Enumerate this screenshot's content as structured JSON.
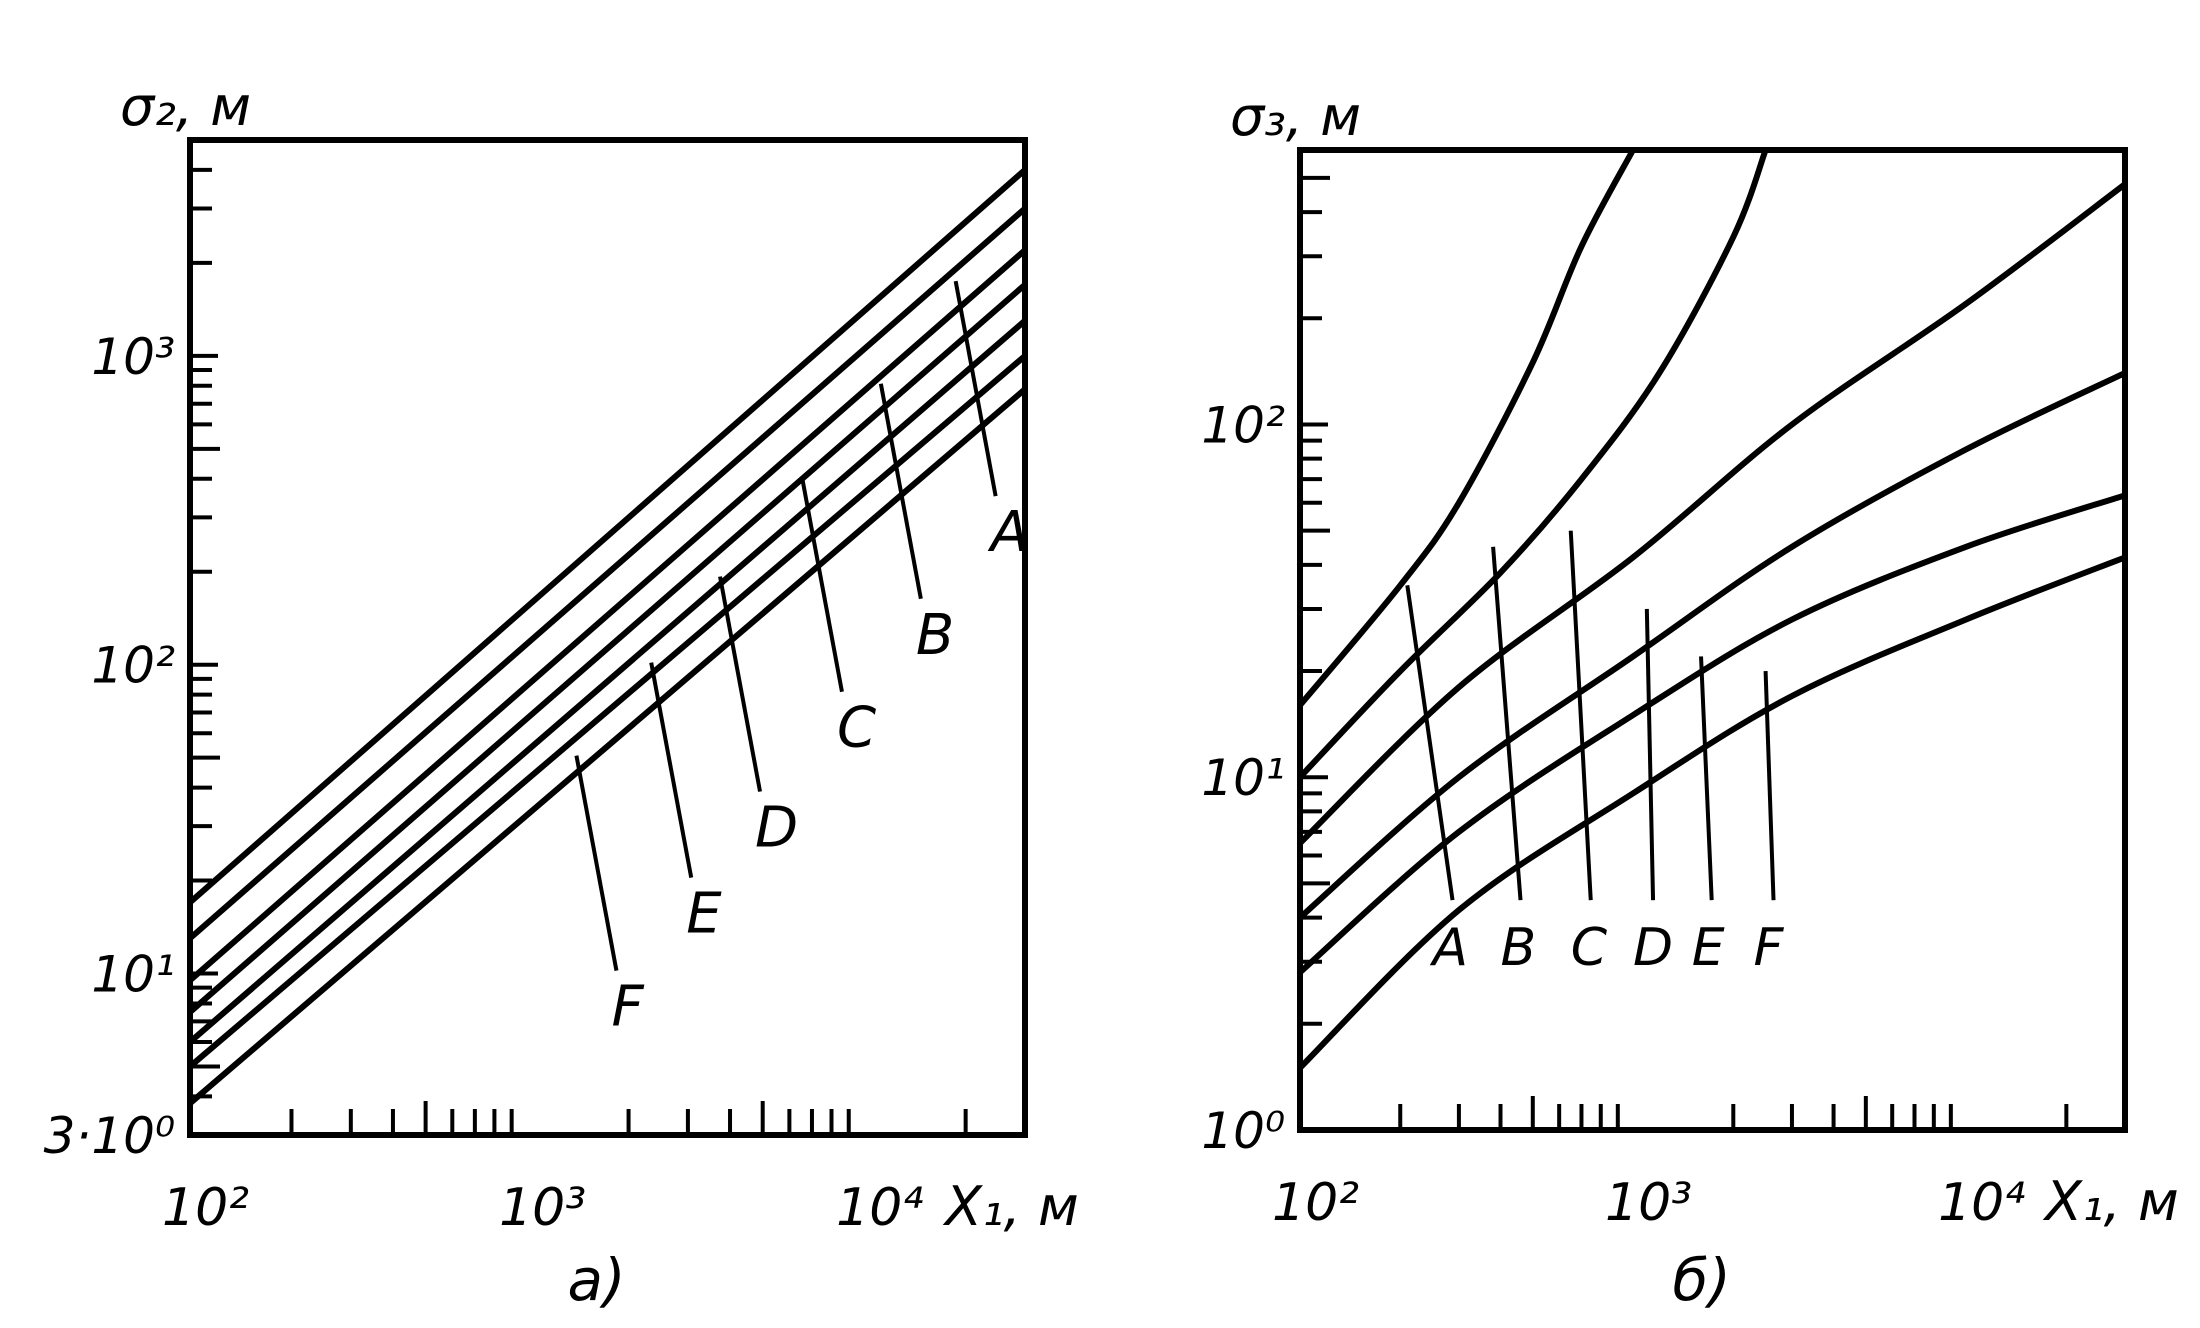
{
  "chart_data": [
    {
      "type": "line",
      "panel_label": "a)",
      "xlabel": "X₁, м",
      "ylabel": "σ₂, м",
      "x_scale": "log",
      "y_scale": "log",
      "xlim": [
        100,
        30000
      ],
      "ylim": [
        3,
        5000
      ],
      "x_tick_labels": [
        {
          "value": 100,
          "text": "10²"
        },
        {
          "value": 1000,
          "text": "10³"
        },
        {
          "value": 10000,
          "text": "10⁴"
        }
      ],
      "y_tick_labels": [
        {
          "value": 3,
          "text": "3·10⁰"
        },
        {
          "value": 10,
          "text": "10¹"
        },
        {
          "value": 100,
          "text": "10²"
        },
        {
          "value": 1000,
          "text": "10³"
        }
      ],
      "series": [
        {
          "name": "A",
          "x": [
            100,
            30000
          ],
          "y": [
            13,
            3000
          ],
          "label_anchor": {
            "x": 20000,
            "y": 860
          }
        },
        {
          "name": "B",
          "x": [
            100,
            30000
          ],
          "y": [
            9.5,
            2200
          ],
          "label_anchor": {
            "x": 12000,
            "y": 400
          }
        },
        {
          "name": "C",
          "x": [
            100,
            30000
          ],
          "y": [
            7.5,
            1700
          ],
          "label_anchor": {
            "x": 7000,
            "y": 200
          }
        },
        {
          "name": "D",
          "x": [
            100,
            30000
          ],
          "y": [
            6,
            1300
          ],
          "label_anchor": {
            "x": 4000,
            "y": 95
          }
        },
        {
          "name": "E",
          "x": [
            100,
            30000
          ],
          "y": [
            5,
            1000
          ],
          "label_anchor": {
            "x": 2500,
            "y": 50
          }
        },
        {
          "name": "F",
          "x": [
            100,
            30000
          ],
          "y": [
            3.8,
            780
          ],
          "label_anchor": {
            "x": 1500,
            "y": 25
          }
        },
        {
          "name": "",
          "x": [
            100,
            30000
          ],
          "y": [
            17,
            4000
          ]
        }
      ]
    },
    {
      "type": "line",
      "panel_label": "б)",
      "xlabel": "X₁, м",
      "ylabel": "σ₃, м",
      "x_scale": "log",
      "y_scale": "log",
      "xlim": [
        100,
        30000
      ],
      "ylim": [
        1,
        600
      ],
      "x_tick_labels": [
        {
          "value": 100,
          "text": "10²"
        },
        {
          "value": 1000,
          "text": "10³"
        },
        {
          "value": 10000,
          "text": "10⁴"
        }
      ],
      "y_tick_labels": [
        {
          "value": 1,
          "text": "10⁰"
        },
        {
          "value": 10,
          "text": "10¹"
        },
        {
          "value": 100,
          "text": "10²"
        }
      ],
      "series": [
        {
          "name": "A",
          "x": [
            100,
            200,
            300,
            500,
            700,
            1000
          ],
          "y": [
            16,
            35,
            60,
            150,
            320,
            600
          ],
          "label_anchor": {
            "x": 250,
            "y": 4.2
          }
        },
        {
          "name": "B",
          "x": [
            100,
            200,
            400,
            700,
            1200,
            2000,
            2500
          ],
          "y": [
            10,
            20,
            38,
            70,
            140,
            340,
            600
          ],
          "label_anchor": {
            "x": 400,
            "y": 4.2
          }
        },
        {
          "name": "C",
          "x": [
            100,
            300,
            1000,
            3000,
            10000,
            30000
          ],
          "y": [
            6.5,
            18,
            42,
            100,
            220,
            480
          ],
          "label_anchor": {
            "x": 650,
            "y": 4.2
          }
        },
        {
          "name": "D",
          "x": [
            100,
            300,
            1000,
            3000,
            10000,
            30000
          ],
          "y": [
            4,
            10,
            22,
            45,
            85,
            140
          ],
          "label_anchor": {
            "x": 1000,
            "y": 4.2
          }
        },
        {
          "name": "E",
          "x": [
            100,
            300,
            1000,
            3000,
            10000,
            30000
          ],
          "y": [
            2.8,
            7,
            15,
            28,
            45,
            63
          ],
          "label_anchor": {
            "x": 1500,
            "y": 4.2
          }
        },
        {
          "name": "F",
          "x": [
            100,
            300,
            1000,
            3000,
            10000,
            30000
          ],
          "y": [
            1.5,
            4.2,
            9,
            17,
            28,
            42
          ],
          "label_anchor": {
            "x": 2300,
            "y": 4.2
          }
        }
      ]
    }
  ]
}
